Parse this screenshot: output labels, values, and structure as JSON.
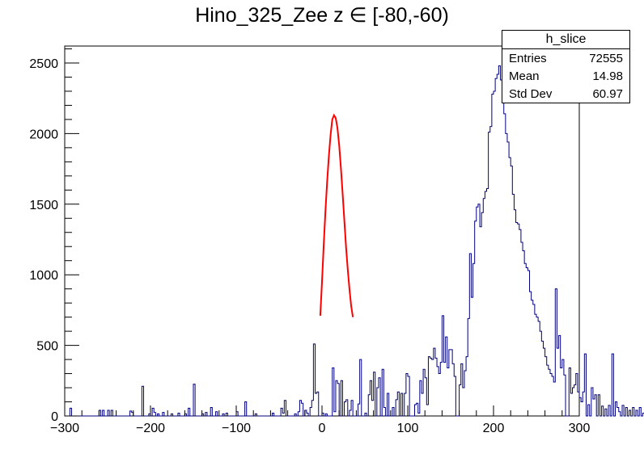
{
  "chart_data": {
    "type": "histogram",
    "title": "Hino_325_Zee z  ∈ [-80,-60)",
    "xlim": [
      -300,
      300
    ],
    "ylim": [
      0,
      2620
    ],
    "x_ticks": [
      -300,
      -200,
      -100,
      0,
      100,
      200,
      300
    ],
    "y_ticks": [
      0,
      500,
      1000,
      1500,
      2000,
      2500
    ],
    "bin_width": 2,
    "histogram": {
      "color": "#00007f",
      "x_start": -300,
      "values": [
        0,
        0,
        0,
        55,
        0,
        0,
        0,
        0,
        0,
        0,
        0,
        0,
        0,
        0,
        0,
        0,
        0,
        0,
        0,
        0,
        40,
        0,
        40,
        0,
        0,
        40,
        0,
        40,
        0,
        0,
        0,
        0,
        0,
        0,
        0,
        0,
        0,
        0,
        35,
        25,
        0,
        0,
        0,
        0,
        0,
        210,
        0,
        0,
        0,
        15,
        0,
        55,
        25,
        0,
        15,
        0,
        0,
        25,
        0,
        0,
        0,
        0,
        15,
        0,
        0,
        0,
        20,
        0,
        0,
        0,
        15,
        0,
        55,
        0,
        0,
        225,
        0,
        0,
        0,
        0,
        15,
        0,
        25,
        0,
        0,
        60,
        0,
        0,
        30,
        0,
        0,
        0,
        15,
        0,
        20,
        0,
        0,
        0,
        0,
        0,
        30,
        0,
        0,
        0,
        0,
        100,
        0,
        0,
        0,
        0,
        0,
        15,
        0,
        0,
        0,
        0,
        0,
        0,
        0,
        0,
        0,
        20,
        0,
        0,
        0,
        0,
        55,
        20,
        110,
        0,
        0,
        0,
        0,
        0,
        15,
        0,
        30,
        110,
        90,
        0,
        40,
        20,
        0,
        60,
        110,
        510,
        160,
        170,
        0,
        0,
        20,
        0,
        15,
        0,
        0,
        0,
        340,
        30,
        250,
        230,
        0,
        250,
        0,
        100,
        115,
        0,
        40,
        110,
        0,
        0,
        0,
        85,
        400,
        0,
        0,
        20,
        0,
        150,
        250,
        110,
        310,
        0,
        200,
        270,
        0,
        330,
        60,
        0,
        160,
        0,
        0,
        60,
        0,
        115,
        170,
        0,
        160,
        0,
        160,
        300,
        280,
        0,
        0,
        0,
        80,
        90,
        20,
        250,
        160,
        330,
        270,
        80,
        420,
        410,
        400,
        480,
        410,
        350,
        300,
        380,
        710,
        380,
        560,
        340,
        470,
        470,
        370,
        280,
        0,
        0,
        220,
        370,
        200,
        320,
        420,
        690,
        1150,
        840,
        1080,
        1380,
        1480,
        1500,
        1340,
        1440,
        1540,
        1590,
        1610,
        2010,
        2050,
        2280,
        2300,
        2390,
        2420,
        2480,
        2380,
        2230,
        2140,
        2000,
        1940,
        1830,
        1770,
        1570,
        1460,
        1370,
        1360,
        1320,
        1230,
        1170,
        1080,
        1050,
        1030,
        880,
        820,
        790,
        720,
        700,
        670,
        600,
        530,
        480,
        420,
        360,
        330,
        300,
        280,
        240,
        900,
        480,
        570,
        340,
        400,
        290,
        0,
        0,
        340,
        160,
        200,
        220,
        300,
        170,
        130,
        100,
        170,
        440,
        0,
        80,
        0,
        200,
        120,
        150,
        0,
        150,
        0,
        70,
        0,
        50,
        0,
        75,
        0,
        440,
        0,
        100,
        60,
        30,
        0,
        75,
        0,
        60,
        0,
        40,
        0,
        60,
        0,
        40,
        0,
        60,
        0,
        20,
        0,
        0,
        60,
        0,
        20,
        0,
        60,
        0,
        0,
        40,
        0,
        20,
        0,
        0,
        0,
        25,
        0,
        0,
        0,
        0,
        0,
        0,
        0,
        15,
        0,
        0,
        20,
        0,
        0,
        0,
        0,
        0,
        0,
        0,
        0,
        0,
        0,
        0,
        0,
        0,
        0,
        0,
        0,
        0,
        0,
        0,
        0,
        0
      ]
    },
    "fit": {
      "color": "#ff0000",
      "x": [
        -2,
        0,
        2,
        4,
        6,
        8,
        10,
        12,
        14,
        16,
        18,
        20,
        22,
        24,
        26,
        28,
        30,
        32,
        34,
        36
      ],
      "y": [
        710,
        950,
        1210,
        1450,
        1660,
        1840,
        1990,
        2100,
        2130,
        2110,
        2040,
        1920,
        1760,
        1580,
        1390,
        1200,
        1040,
        900,
        780,
        700
      ]
    },
    "stats_box": {
      "header": "h_slice",
      "rows": [
        {
          "label": "Entries",
          "value": "72555"
        },
        {
          "label": "Mean",
          "value": "14.98"
        },
        {
          "label": "Std Dev",
          "value": "60.97"
        }
      ]
    }
  }
}
